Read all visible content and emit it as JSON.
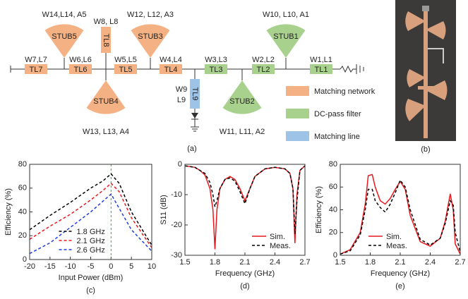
{
  "diagram": {
    "label": "(a)",
    "lines": [
      {
        "name": "TL7",
        "label": "W7,L7",
        "color": "#f4b183"
      },
      {
        "name": "TL6",
        "label": "W6,L6",
        "color": "#f4b183"
      },
      {
        "name": "TL5",
        "label": "W5,L5",
        "color": "#f4b183"
      },
      {
        "name": "TL4",
        "label": "W4,L4",
        "color": "#f4b183"
      },
      {
        "name": "TL3",
        "label": "W3,L3",
        "color": "#a9d18e"
      },
      {
        "name": "TL2",
        "label": "W2,L2",
        "color": "#a9d18e"
      },
      {
        "name": "TL1",
        "label": "W1,L1",
        "color": "#a9d18e"
      },
      {
        "name": "TL8",
        "label": [
          "W8, L8"
        ],
        "color": "#f4b183"
      },
      {
        "name": "TL9",
        "label": [
          "W9",
          "L9"
        ],
        "color": "#9dc3e6"
      }
    ],
    "stubs": [
      {
        "name": "STUB5",
        "label": "W14,L14, A5",
        "color": "#f4b183"
      },
      {
        "name": "STUB3",
        "label": "W12, L12, A3",
        "color": "#f4b183"
      },
      {
        "name": "STUB1",
        "label": "W10, L10, A1",
        "color": "#a9d18e"
      },
      {
        "name": "STUB4",
        "label": "W13, L13, A4",
        "color": "#f4b183"
      },
      {
        "name": "STUB2",
        "label": "W11, L11, A2",
        "color": "#a9d18e"
      }
    ],
    "legend": [
      {
        "name": "Matching network",
        "color": "#f4b183"
      },
      {
        "name": "DC-pass filter",
        "color": "#a9d18e"
      },
      {
        "name": "Matching line",
        "color": "#9dc3e6"
      }
    ]
  },
  "photo": {
    "label": "(b)"
  },
  "chart_data": [
    {
      "type": "line",
      "label": "(c)",
      "x_label": "Input Power (dBm)",
      "y_label": "Efficiency (%)",
      "x": [
        -20,
        -15,
        -10,
        -5,
        -2,
        0,
        2,
        5,
        10
      ],
      "xlim": [
        -20,
        10
      ],
      "xticks": [
        -20,
        -15,
        -10,
        -5,
        0,
        5,
        10
      ],
      "ylim": [
        0,
        80
      ],
      "yticks": [
        0,
        20,
        40,
        60,
        80
      ],
      "legend": "lower center",
      "reference_line": {
        "x": 0,
        "color": "#33aa33"
      },
      "series": [
        {
          "name": "1.8 GHz",
          "color": "#000000",
          "dashed": true,
          "values": [
            25,
            37,
            48,
            60,
            66,
            72,
            64,
            40,
            12
          ]
        },
        {
          "name": "2.1 GHz",
          "color": "#e8191e",
          "dashed": true,
          "values": [
            17,
            28,
            38,
            50,
            58,
            64,
            57,
            35,
            10
          ]
        },
        {
          "name": "2.6 GHz",
          "color": "#1f3fe0",
          "dashed": true,
          "values": [
            5,
            14,
            27,
            40,
            49,
            55,
            43,
            25,
            7
          ]
        }
      ]
    },
    {
      "type": "line",
      "label": "(d)",
      "x_label": "Frequency (GHz)",
      "y_label": "S11 (dB)",
      "x": [
        1.5,
        1.6,
        1.65,
        1.7,
        1.75,
        1.78,
        1.8,
        1.82,
        1.85,
        1.9,
        1.95,
        2.0,
        2.05,
        2.1,
        2.15,
        2.2,
        2.3,
        2.4,
        2.5,
        2.55,
        2.58,
        2.6,
        2.62,
        2.65,
        2.7
      ],
      "xlim": [
        1.5,
        2.7
      ],
      "xticks": [
        1.5,
        1.8,
        2.1,
        2.4,
        2.7
      ],
      "ylim": [
        -30,
        0
      ],
      "yticks": [
        0,
        -10,
        -20,
        -30
      ],
      "legend": "lower right",
      "series": [
        {
          "name": "Sim.",
          "color": "#e8191e",
          "dashed": false,
          "values": [
            -0.5,
            -1,
            -2,
            -3.5,
            -8,
            -15,
            -28,
            -15,
            -8,
            -5,
            -4,
            -5,
            -8,
            -12,
            -8,
            -4,
            -1.5,
            -1,
            -1.5,
            -3,
            -8,
            -26,
            -10,
            -2,
            -0.5
          ]
        },
        {
          "name": "Meas.",
          "color": "#000000",
          "dashed": true,
          "values": [
            -0.5,
            -1,
            -2,
            -3,
            -6,
            -10,
            -14,
            -12,
            -8,
            -5,
            -4.5,
            -5.5,
            -9,
            -13,
            -8,
            -4,
            -1.5,
            -1,
            -1.5,
            -3,
            -8,
            -23,
            -12,
            -2,
            -0.5
          ]
        }
      ]
    },
    {
      "type": "line",
      "label": "(e)",
      "x_label": "Frequency (GHz)",
      "y_label": "Efficiency (%)",
      "x": [
        1.5,
        1.6,
        1.7,
        1.75,
        1.78,
        1.82,
        1.85,
        1.9,
        1.95,
        2.0,
        2.05,
        2.1,
        2.15,
        2.2,
        2.3,
        2.4,
        2.5,
        2.55,
        2.6,
        2.63,
        2.65,
        2.7
      ],
      "xlim": [
        1.5,
        2.7
      ],
      "xticks": [
        1.5,
        1.8,
        2.1,
        2.4,
        2.7
      ],
      "ylim": [
        0,
        80
      ],
      "yticks": [
        0,
        20,
        40,
        60,
        80
      ],
      "legend": "lower center",
      "series": [
        {
          "name": "Sim.",
          "color": "#e8191e",
          "dashed": false,
          "values": [
            1,
            5,
            20,
            45,
            70,
            71,
            60,
            48,
            45,
            50,
            58,
            65,
            58,
            35,
            12,
            8,
            15,
            30,
            54,
            40,
            10,
            1
          ]
        },
        {
          "name": "Meas.",
          "color": "#000000",
          "dashed": true,
          "values": [
            1,
            4,
            18,
            40,
            58,
            58,
            48,
            42,
            38,
            45,
            55,
            66,
            60,
            40,
            14,
            9,
            15,
            28,
            48,
            44,
            20,
            3
          ]
        }
      ]
    }
  ]
}
